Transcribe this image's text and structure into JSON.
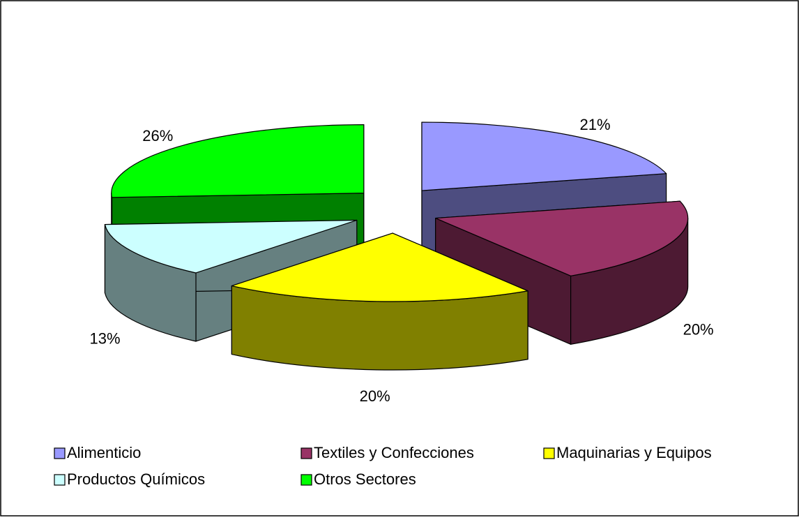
{
  "chart_data": {
    "type": "pie",
    "categories": [
      "Alimenticio",
      "Textiles y Confecciones",
      "Maquinarias y Equipos",
      "Productos Químicos",
      "Otros Sectores"
    ],
    "values": [
      21,
      20,
      20,
      13,
      26
    ],
    "value_labels": [
      "21%",
      "20%",
      "20%",
      "13%",
      "26%"
    ],
    "colors": [
      "#9999ff",
      "#993366",
      "#ffff00",
      "#ccffff",
      "#00ff00"
    ],
    "legend": "bottom"
  }
}
